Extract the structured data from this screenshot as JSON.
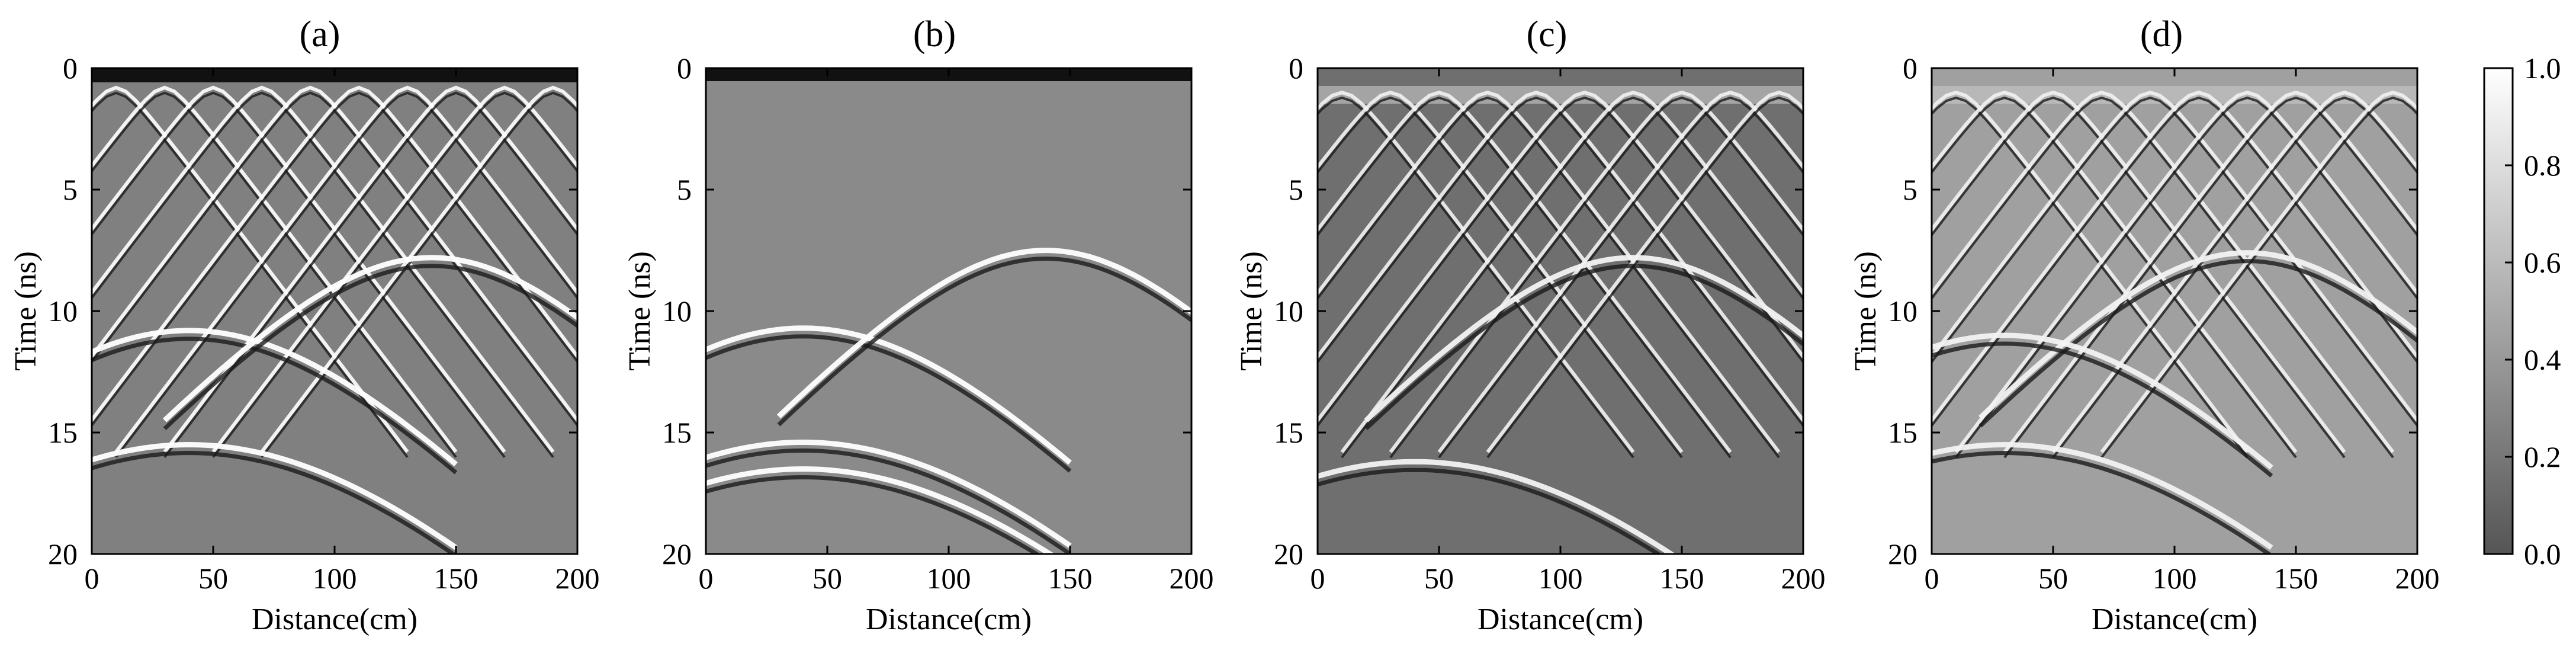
{
  "chart_data": [
    {
      "type": "heatmap",
      "title": "(a)",
      "xlabel": "Distance(cm)",
      "ylabel": "Time (ns)",
      "xlim": [
        0,
        200
      ],
      "ylim": [
        20,
        0
      ],
      "xticks": [
        "0",
        "50",
        "100",
        "150",
        "200"
      ],
      "yticks": [
        "0",
        "5",
        "10",
        "15",
        "20"
      ],
      "colormap": "gray",
      "description_hint": "raw B-scan",
      "hyperbola_apexes": [
        {
          "x": 10,
          "t": 0.8
        },
        {
          "x": 30,
          "t": 0.8
        },
        {
          "x": 50,
          "t": 0.8
        },
        {
          "x": 70,
          "t": 0.8
        },
        {
          "x": 90,
          "t": 0.8
        },
        {
          "x": 110,
          "t": 0.8
        },
        {
          "x": 130,
          "t": 0.8
        },
        {
          "x": 150,
          "t": 0.8
        },
        {
          "x": 170,
          "t": 0.8
        },
        {
          "x": 190,
          "t": 0.8
        },
        {
          "x": 40,
          "t": 10.8
        },
        {
          "x": 140,
          "t": 7.8
        },
        {
          "x": 40,
          "t": 15.5
        }
      ]
    },
    {
      "type": "heatmap",
      "title": "(b)",
      "xlabel": "Distance(cm)",
      "ylabel": "Time (ns)",
      "xlim": [
        0,
        200
      ],
      "ylim": [
        20,
        0
      ],
      "xticks": [
        "0",
        "50",
        "100",
        "150",
        "200"
      ],
      "yticks": [
        "0",
        "5",
        "10",
        "15",
        "20"
      ],
      "colormap": "gray",
      "hyperbola_apexes": [
        {
          "x": 40,
          "t": 10.7
        },
        {
          "x": 140,
          "t": 7.5
        },
        {
          "x": 40,
          "t": 15.4
        },
        {
          "x": 40,
          "t": 16.5
        }
      ]
    },
    {
      "type": "heatmap",
      "title": "(c)",
      "xlabel": "Distance(cm)",
      "ylabel": "Time (ns)",
      "xlim": [
        0,
        200
      ],
      "ylim": [
        20,
        0
      ],
      "xticks": [
        "0",
        "50",
        "100",
        "150",
        "200"
      ],
      "yticks": [
        "0",
        "5",
        "10",
        "15",
        "20"
      ],
      "colormap": "gray",
      "hyperbola_apexes": [
        {
          "x": 10,
          "t": 1.0
        },
        {
          "x": 30,
          "t": 1.0
        },
        {
          "x": 50,
          "t": 1.0
        },
        {
          "x": 70,
          "t": 1.0
        },
        {
          "x": 90,
          "t": 1.0
        },
        {
          "x": 110,
          "t": 1.0
        },
        {
          "x": 130,
          "t": 1.0
        },
        {
          "x": 150,
          "t": 1.0
        },
        {
          "x": 170,
          "t": 1.0
        },
        {
          "x": 190,
          "t": 1.0
        },
        {
          "x": 130,
          "t": 7.8
        },
        {
          "x": 40,
          "t": 16.2
        }
      ]
    },
    {
      "type": "heatmap",
      "title": "(d)",
      "xlabel": "Distance(cm)",
      "ylabel": "Time (ns)",
      "xlim": [
        0,
        200
      ],
      "ylim": [
        20,
        0
      ],
      "xticks": [
        "0",
        "50",
        "100",
        "150",
        "200"
      ],
      "yticks": [
        "0",
        "5",
        "10",
        "15",
        "20"
      ],
      "colormap": "gray",
      "hyperbola_apexes": [
        {
          "x": 10,
          "t": 1.0
        },
        {
          "x": 30,
          "t": 1.0
        },
        {
          "x": 50,
          "t": 1.0
        },
        {
          "x": 70,
          "t": 1.0
        },
        {
          "x": 90,
          "t": 1.0
        },
        {
          "x": 110,
          "t": 1.0
        },
        {
          "x": 130,
          "t": 1.0
        },
        {
          "x": 150,
          "t": 1.0
        },
        {
          "x": 170,
          "t": 1.0
        },
        {
          "x": 190,
          "t": 1.0
        },
        {
          "x": 130,
          "t": 7.6
        },
        {
          "x": 30,
          "t": 15.5
        },
        {
          "x": 30,
          "t": 11.0
        }
      ]
    }
  ],
  "colorbar": {
    "range": [
      0.0,
      1.0
    ],
    "ticks": [
      "0.0",
      "0.2",
      "0.4",
      "0.6",
      "0.8",
      "1.0"
    ],
    "colors": [
      "#555555",
      "#ffffff"
    ]
  }
}
